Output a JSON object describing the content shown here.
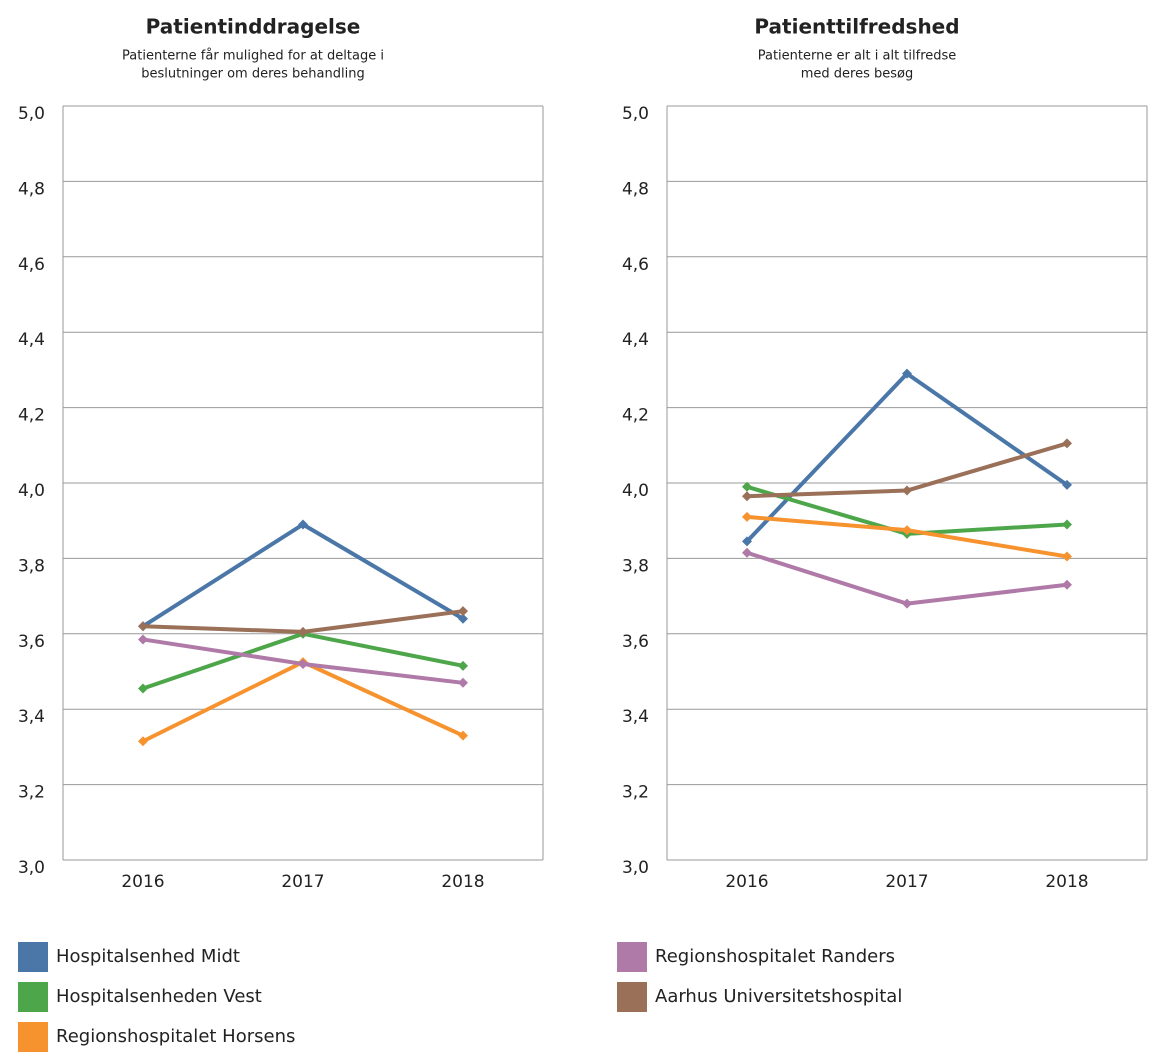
{
  "chart_data": [
    {
      "type": "line",
      "title": "Patientinddragelse",
      "subtitle": [
        "Patienterne får mulighed for at deltage i",
        "beslutninger om deres behandling"
      ],
      "categories": [
        "2016",
        "2017",
        "2018"
      ],
      "ylim": [
        3.0,
        5.0
      ],
      "yticks": [
        {
          "value": 3.0,
          "label": "3,0"
        },
        {
          "value": 3.2,
          "label": "3,2"
        },
        {
          "value": 3.4,
          "label": "3,4"
        },
        {
          "value": 3.6,
          "label": "3,6"
        },
        {
          "value": 3.8,
          "label": "3,8"
        },
        {
          "value": 4.0,
          "label": "4,0"
        },
        {
          "value": 4.2,
          "label": "4,2"
        },
        {
          "value": 4.4,
          "label": "4,4"
        },
        {
          "value": 4.6,
          "label": "4,6"
        },
        {
          "value": 4.8,
          "label": "4,8"
        },
        {
          "value": 5.0,
          "label": "5,0"
        }
      ],
      "grid": true,
      "series": [
        {
          "name": "Hospitalsenhed Midt",
          "color": "#4a77a8",
          "values": [
            3.62,
            3.89,
            3.64
          ]
        },
        {
          "name": "Hospitalsenheden Vest",
          "color": "#4da64a",
          "values": [
            3.455,
            3.6,
            3.515
          ]
        },
        {
          "name": "Regionshospitalet Horsens",
          "color": "#f7932f",
          "values": [
            3.315,
            3.525,
            3.33
          ]
        },
        {
          "name": "Regionshospitalet Randers",
          "color": "#b07aa8",
          "values": [
            3.585,
            3.52,
            3.47
          ]
        },
        {
          "name": "Aarhus Universitetshospital",
          "color": "#9a7058",
          "values": [
            3.62,
            3.605,
            3.66
          ]
        }
      ]
    },
    {
      "type": "line",
      "title": "Patienttilfredshed",
      "subtitle": [
        "Patienterne er alt i alt tilfredse",
        "med deres besøg"
      ],
      "categories": [
        "2016",
        "2017",
        "2018"
      ],
      "ylim": [
        3.0,
        5.0
      ],
      "yticks": [
        {
          "value": 3.0,
          "label": "3,0"
        },
        {
          "value": 3.2,
          "label": "3,2"
        },
        {
          "value": 3.4,
          "label": "3,4"
        },
        {
          "value": 3.6,
          "label": "3,6"
        },
        {
          "value": 3.8,
          "label": "3,8"
        },
        {
          "value": 4.0,
          "label": "4,0"
        },
        {
          "value": 4.2,
          "label": "4,2"
        },
        {
          "value": 4.4,
          "label": "4,4"
        },
        {
          "value": 4.6,
          "label": "4,6"
        },
        {
          "value": 4.8,
          "label": "4,8"
        },
        {
          "value": 5.0,
          "label": "5,0"
        }
      ],
      "grid": true,
      "series": [
        {
          "name": "Hospitalsenhed Midt",
          "color": "#4a77a8",
          "values": [
            3.845,
            4.29,
            3.995
          ]
        },
        {
          "name": "Hospitalsenheden Vest",
          "color": "#4da64a",
          "values": [
            3.99,
            3.865,
            3.89
          ]
        },
        {
          "name": "Regionshospitalet Horsens",
          "color": "#f7932f",
          "values": [
            3.91,
            3.875,
            3.805
          ]
        },
        {
          "name": "Regionshospitalet Randers",
          "color": "#b07aa8",
          "values": [
            3.815,
            3.68,
            3.73
          ]
        },
        {
          "name": "Aarhus Universitetshospital",
          "color": "#9a7058",
          "values": [
            3.965,
            3.98,
            4.105
          ]
        }
      ]
    }
  ]
}
